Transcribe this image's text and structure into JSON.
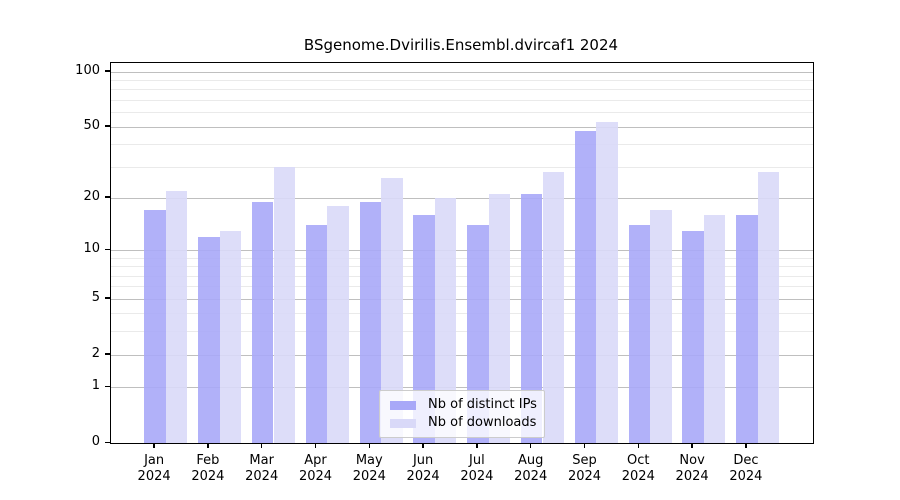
{
  "title": "BSgenome.Dvirilis.Ensembl.dvircaf1 2024",
  "legend": {
    "items": [
      {
        "label": "Nb of distinct IPs",
        "color": "#a8a8f8"
      },
      {
        "label": "Nb of downloads",
        "color": "#d9d9f8"
      }
    ]
  },
  "colors": {
    "bar_distinct_ips": "#a8a8f8",
    "bar_downloads": "#d9d9f8",
    "grid_major": "#bfbfbf",
    "grid_minor": "#eaeaea",
    "axis": "#000000"
  },
  "chart_data": {
    "type": "bar",
    "title": "BSgenome.Dvirilis.Ensembl.dvircaf1 2024",
    "categories": [
      "Jan 2024",
      "Feb 2024",
      "Mar 2024",
      "Apr 2024",
      "May 2024",
      "Jun 2024",
      "Jul 2024",
      "Aug 2024",
      "Sep 2024",
      "Oct 2024",
      "Nov 2024",
      "Dec 2024"
    ],
    "month_labels": [
      "Jan",
      "Feb",
      "Mar",
      "Apr",
      "May",
      "Jun",
      "Jul",
      "Aug",
      "Sep",
      "Oct",
      "Nov",
      "Dec"
    ],
    "year_label": "2024",
    "series": [
      {
        "name": "Nb of distinct IPs",
        "color": "#a8a8f8",
        "values": [
          17,
          12,
          19,
          14,
          19,
          16,
          14,
          21,
          47,
          14,
          13,
          16
        ]
      },
      {
        "name": "Nb of downloads",
        "color": "#d9d9f8",
        "values": [
          22,
          13,
          30,
          18,
          26,
          20,
          21,
          28,
          53,
          17,
          16,
          28
        ]
      }
    ],
    "xlabel": "",
    "ylabel": "",
    "y_axis": {
      "scale": "log1p",
      "tick_values": [
        0,
        1,
        2,
        5,
        10,
        20,
        50,
        100
      ],
      "tick_labels": [
        "0",
        "1",
        "2",
        "5",
        "10",
        "20",
        "50",
        "100"
      ],
      "minor_gridlines": [
        3,
        4,
        6,
        7,
        8,
        9,
        30,
        40,
        60,
        70,
        80,
        90
      ],
      "ylim": [
        0,
        111
      ]
    },
    "grid": true,
    "legend_position": "inside-bottom-center"
  }
}
